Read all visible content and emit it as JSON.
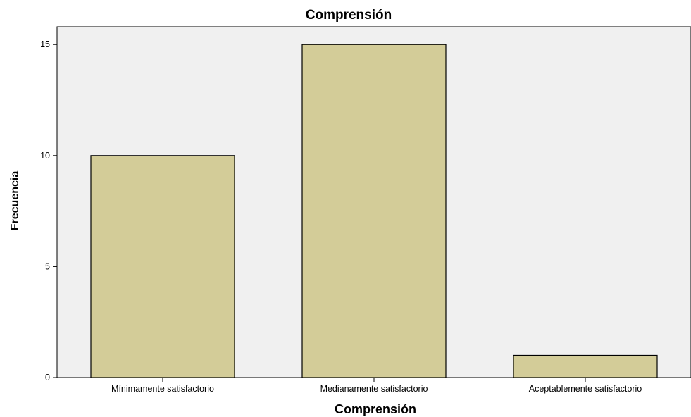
{
  "chart_data": {
    "type": "bar",
    "title": "Comprensión",
    "xlabel": "Comprensión",
    "ylabel": "Frecuencia",
    "categories": [
      "Mínimamente satisfactorio",
      "Medianamente satisfactorio",
      "Aceptablemente satisfactorio"
    ],
    "values": [
      10,
      15,
      1
    ],
    "ylim": [
      0,
      15.8
    ],
    "yticks": [
      0,
      5,
      10,
      15
    ],
    "grid": false,
    "legend": "none",
    "colors": {
      "bar_fill": "#d3cc98",
      "plot_background": "#f0f0f0",
      "bar_stroke": "#000000"
    }
  }
}
